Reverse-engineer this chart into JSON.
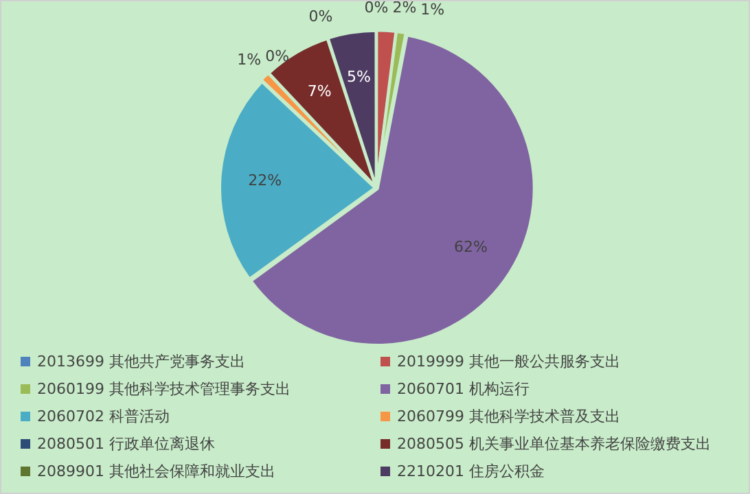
{
  "chart_data": {
    "type": "pie",
    "categories": [
      "2013699 其他共产党事务支出",
      "2019999 其他一般公共服务支出",
      "2060199 其他科学技术管理事务支出",
      "2060701 机构运行",
      "2060702 科普活动",
      "2060799 其他科学技术普及支出",
      "2080501 行政单位离退休",
      "2080505 机关事业单位基本养老保险缴费支出",
      "2089901 其他社会保障和就业支出",
      "2210201 住房公积金"
    ],
    "values": [
      0,
      2,
      1,
      62,
      22,
      1,
      0,
      7,
      0,
      5
    ],
    "value_labels": [
      "0%",
      "2%",
      "1%",
      "62%",
      "22%",
      "1%",
      "0%",
      "7%",
      "0%",
      "5%"
    ],
    "colors": [
      "#4f81bd",
      "#c0504d",
      "#9bbb59",
      "#8064a2",
      "#4bacc6",
      "#f79646",
      "#2c4d75",
      "#772c2a",
      "#5f7530",
      "#4d3b62"
    ],
    "legend": "bottom"
  }
}
